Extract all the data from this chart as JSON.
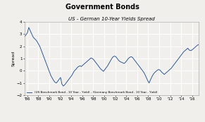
{
  "title": "Government Bonds",
  "subtitle": "US - German 10-Year Yields Spread",
  "ylabel": "Spread",
  "legend_label": "(US Benchmark Bond - 10 Year - Yield) - (Germany Benchmark Bond - 10 Year - Yield)",
  "line_color": "#1f4e96",
  "background_color": "#f0efeb",
  "plot_bg_color": "#f0efeb",
  "grid_color": "#ffffff",
  "ylim": [
    -2,
    4
  ],
  "yticks": [
    -2,
    -1,
    0,
    1,
    2,
    3,
    4
  ],
  "x_start_year": 1985.5,
  "x_end_year": 2017.2,
  "xtick_years": [
    1986,
    1988,
    1990,
    1992,
    1994,
    1996,
    1998,
    2000,
    2002,
    2004,
    2006,
    2008,
    2010,
    2012,
    2014,
    2016
  ],
  "xtick_labels": [
    "'86",
    "'88",
    "'90",
    "'92",
    "'94",
    "'96",
    "'98",
    "'00",
    "'02",
    "'04",
    "'06",
    "'08",
    "'10",
    "'12",
    "'14",
    "'16"
  ],
  "spread_data": [
    2.8,
    2.95,
    3.1,
    3.55,
    3.3,
    3.05,
    2.8,
    2.65,
    2.55,
    2.4,
    2.2,
    2.0,
    1.7,
    1.4,
    1.1,
    0.8,
    0.5,
    0.2,
    -0.1,
    -0.4,
    -0.6,
    -0.8,
    -0.95,
    -1.0,
    -0.85,
    -0.7,
    -0.55,
    -1.1,
    -1.25,
    -1.15,
    -1.0,
    -0.85,
    -0.7,
    -0.55,
    -0.4,
    -0.2,
    0.0,
    0.1,
    0.25,
    0.35,
    0.4,
    0.35,
    0.45,
    0.55,
    0.65,
    0.75,
    0.85,
    0.95,
    1.05,
    1.0,
    0.9,
    0.75,
    0.6,
    0.45,
    0.3,
    0.15,
    0.05,
    -0.05,
    0.1,
    0.25,
    0.4,
    0.6,
    0.8,
    1.0,
    1.15,
    1.2,
    1.15,
    1.0,
    0.85,
    0.75,
    0.7,
    0.65,
    0.6,
    0.7,
    0.85,
    1.0,
    1.1,
    1.15,
    1.1,
    0.95,
    0.8,
    0.65,
    0.5,
    0.35,
    0.2,
    0.05,
    -0.1,
    -0.3,
    -0.55,
    -0.8,
    -1.0,
    -0.75,
    -0.5,
    -0.3,
    -0.15,
    -0.05,
    0.05,
    0.1,
    0.05,
    -0.1,
    -0.2,
    -0.3,
    -0.2,
    -0.1,
    0.0,
    0.1,
    0.2,
    0.35,
    0.5,
    0.65,
    0.8,
    0.95,
    1.1,
    1.25,
    1.4,
    1.55,
    1.65,
    1.75,
    1.85,
    1.7,
    1.65,
    1.7,
    1.8,
    1.9,
    2.0,
    2.1,
    2.15
  ]
}
